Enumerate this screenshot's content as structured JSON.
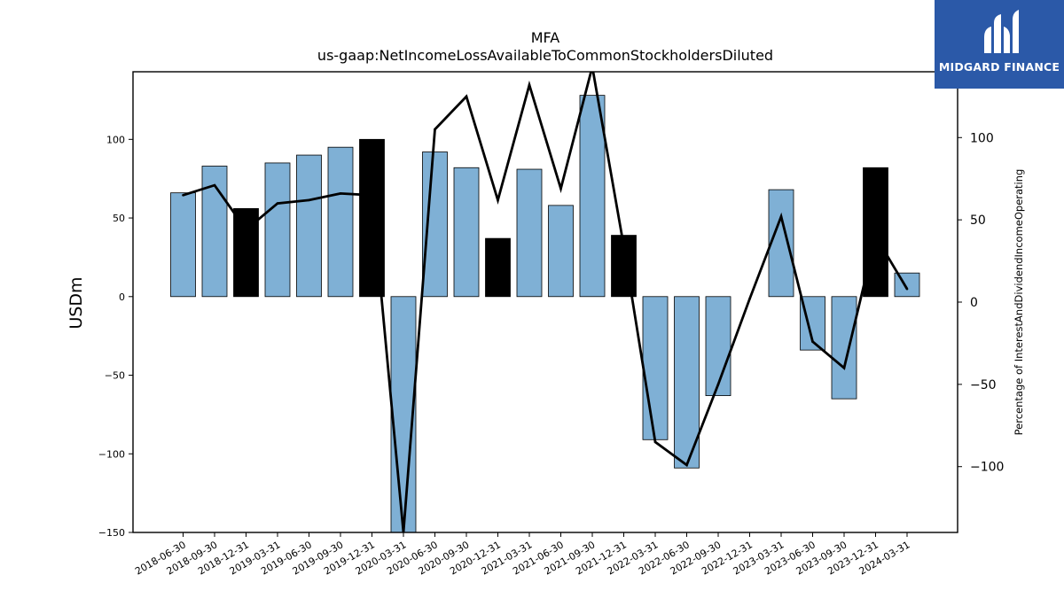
{
  "chart_data": {
    "type": "bar",
    "title": "MFA",
    "subtitle": "us-gaap:NetIncomeLossAvailableToCommonStockholdersDiluted",
    "ylabel": "USDm",
    "y2label": "Percentage of InterestAndDividendIncomeOperating",
    "ylim": [
      -150,
      143
    ],
    "y2lim": [
      -140,
      140
    ],
    "yticks": [
      -150,
      -100,
      -50,
      0,
      50,
      100
    ],
    "y2ticks": [
      -100,
      -50,
      0,
      50,
      100
    ],
    "categories": [
      "2018-06-30",
      "2018-09-30",
      "2018-12-31",
      "2019-03-31",
      "2019-06-30",
      "2019-09-30",
      "2019-12-31",
      "2020-03-31",
      "2020-06-30",
      "2020-09-30",
      "2020-12-31",
      "2021-03-31",
      "2021-06-30",
      "2021-09-30",
      "2021-12-31",
      "2022-03-31",
      "2022-06-30",
      "2022-09-30",
      "2022-12-31",
      "2023-03-31",
      "2023-06-30",
      "2023-09-30",
      "2023-12-31",
      "2024-03-31"
    ],
    "series": [
      {
        "values": [
          66,
          83,
          56,
          85,
          90,
          95,
          100,
          -150,
          92,
          82,
          37,
          81,
          58,
          128,
          39,
          -91,
          -109,
          -63,
          0,
          68,
          -34,
          -65,
          82,
          15
        ],
        "highlight": [
          false,
          false,
          true,
          false,
          false,
          false,
          true,
          false,
          false,
          false,
          true,
          false,
          false,
          false,
          true,
          false,
          false,
          false,
          false,
          false,
          false,
          false,
          true,
          false
        ],
        "color": "#7fb0d5",
        "highlight_color": "#000000"
      },
      {
        "axis": "right",
        "type": "line",
        "color": "#000000",
        "values": [
          65,
          71,
          44,
          60,
          62,
          66,
          65,
          -140,
          105,
          125,
          62,
          132,
          69,
          143,
          34,
          -85,
          -99,
          -50,
          2,
          52,
          -24,
          -40,
          40,
          8
        ]
      }
    ],
    "grid": false,
    "legend": "none"
  },
  "logo": {
    "brand": "MIDGARD FINANCE"
  }
}
